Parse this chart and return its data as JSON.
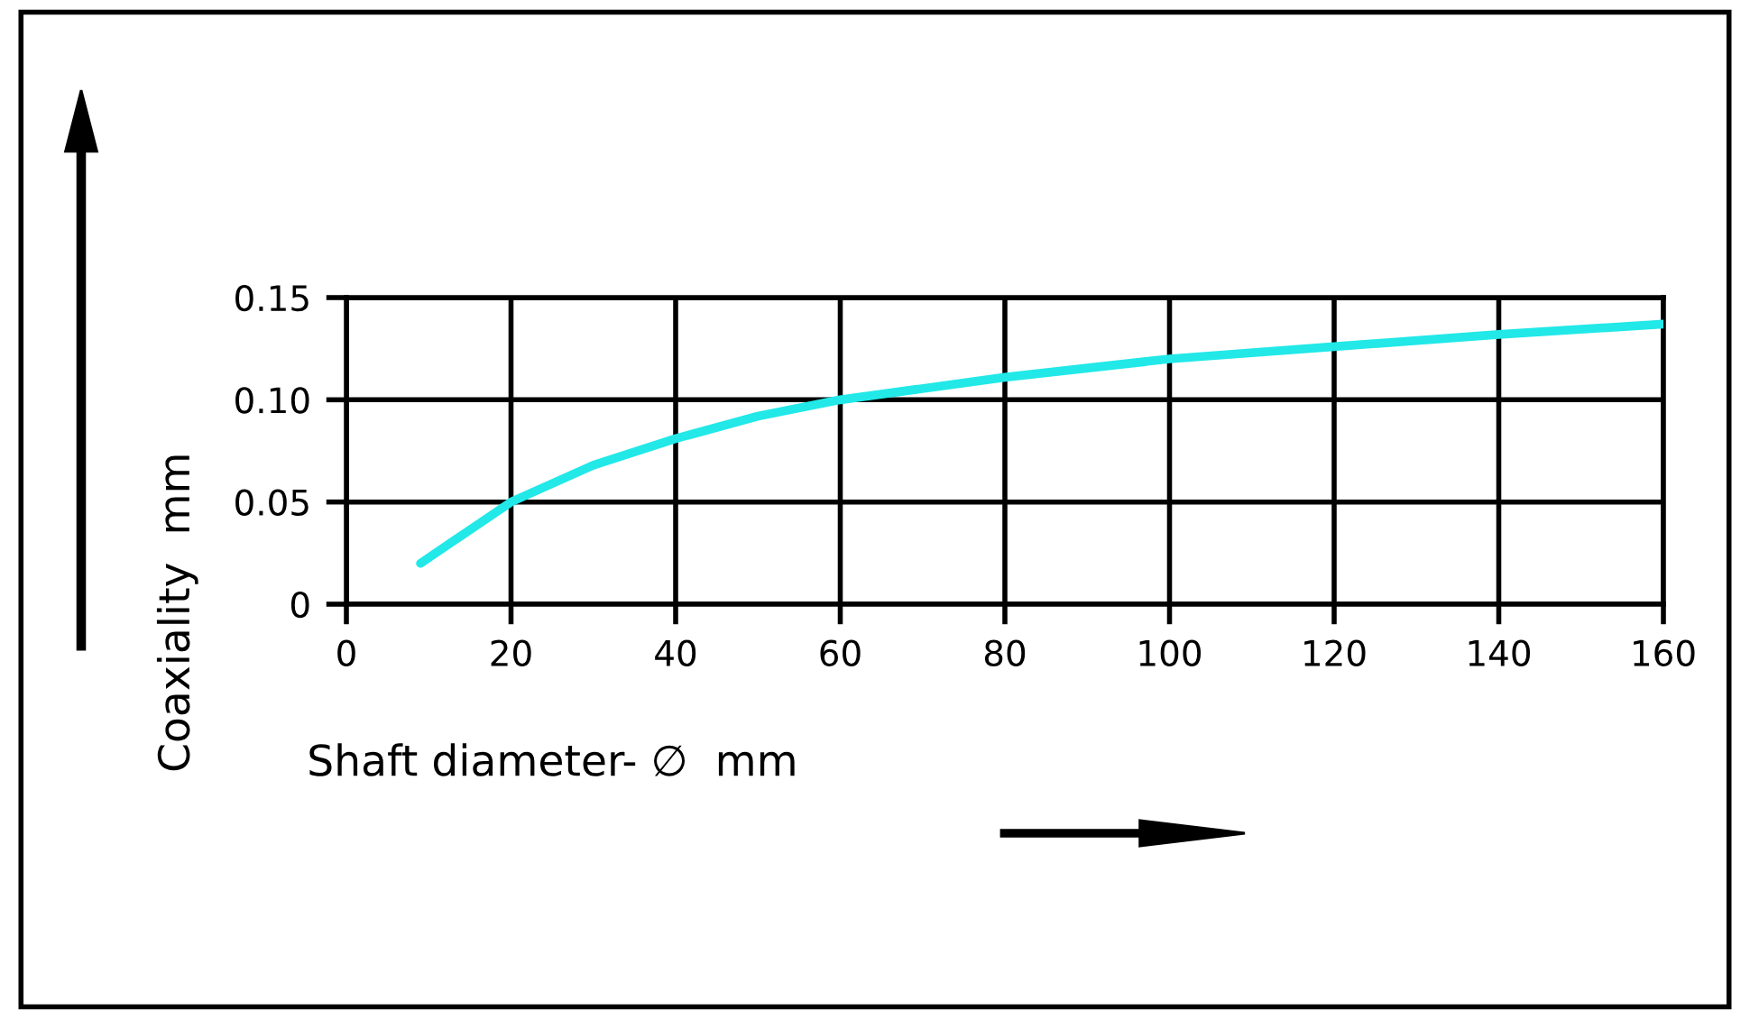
{
  "chart_data": {
    "type": "line",
    "xlabel": "Shaft diameter- ∅  mm",
    "ylabel": "Coaxiality  mm",
    "series": [
      {
        "color": "#22e8e8",
        "x": [
          9,
          20,
          30,
          40,
          50,
          60,
          80,
          100,
          120,
          140,
          160
        ],
        "values": [
          0.02,
          0.05,
          0.068,
          0.081,
          0.092,
          0.1,
          0.111,
          0.12,
          0.126,
          0.132,
          0.137
        ]
      }
    ],
    "xlim": [
      0,
      160
    ],
    "ylim": [
      0,
      0.15
    ],
    "xticks": [
      0,
      20,
      40,
      60,
      80,
      100,
      120,
      140,
      160
    ],
    "yticks": [
      {
        "value": 0,
        "label": "0"
      },
      {
        "value": 0.05,
        "label": "0.05"
      },
      {
        "value": 0.1,
        "label": "0.10"
      },
      {
        "value": 0.15,
        "label": "0.15"
      }
    ],
    "grid": true,
    "marker": "none",
    "line_style": "solid"
  }
}
